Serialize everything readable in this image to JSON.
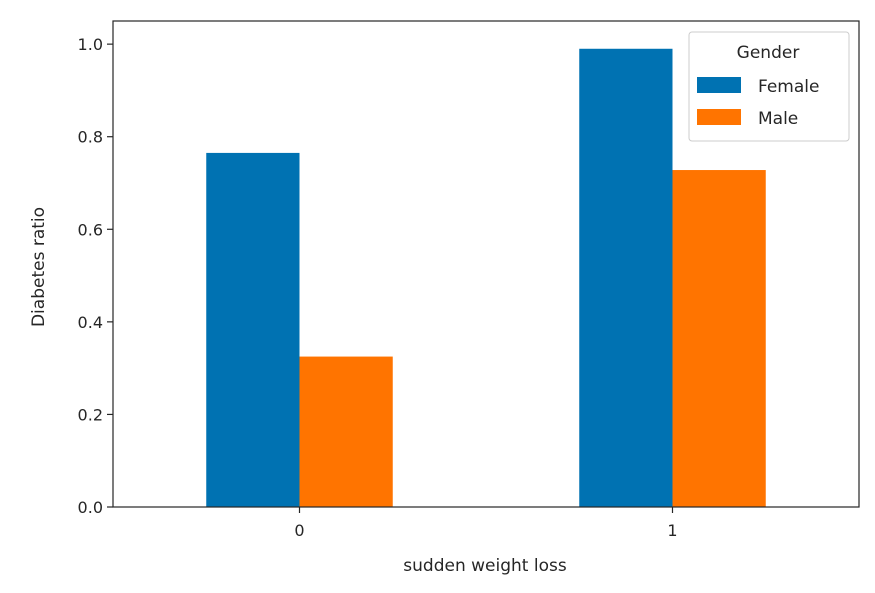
{
  "chart_data": {
    "type": "bar",
    "title": "",
    "xlabel": "sudden weight loss",
    "ylabel": "Diabetes ratio",
    "categories": [
      "0",
      "1"
    ],
    "series": [
      {
        "name": "Female",
        "values": [
          0.765,
          0.99
        ],
        "color": "#0072B2"
      },
      {
        "name": "Male",
        "values": [
          0.325,
          0.728
        ],
        "color": "#FF7400"
      }
    ],
    "ylim": [
      0.0,
      1.05
    ],
    "yticks": [
      "0.0",
      "0.2",
      "0.4",
      "0.6",
      "0.8",
      "1.0"
    ],
    "ytick_values": [
      0.0,
      0.2,
      0.4,
      0.6,
      0.8,
      1.0
    ],
    "grid": false,
    "legend": {
      "title": "Gender",
      "placement": "upper right"
    }
  }
}
